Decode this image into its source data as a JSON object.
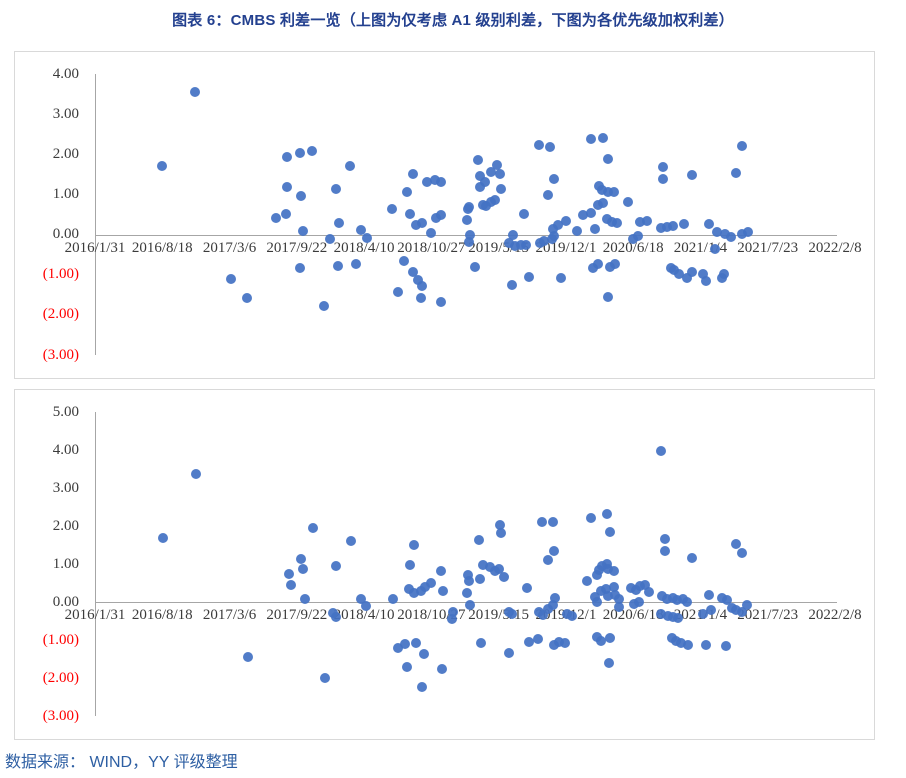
{
  "title": "图表 6：CMBS 利差一览（上图为仅考虑 A1 级别利差，下图为各优先级加权利差）",
  "source": "数据来源： WIND，YY 评级整理",
  "colors": {
    "title": "#23408f",
    "source": "#2e5fa3",
    "point": "#4472c4",
    "axis_line": "#a6a6a6",
    "tick_label": "#3b3b3b",
    "negative_tick_label": "#ff0000",
    "frame_border": "#d9d9d9"
  },
  "chart_data": [
    {
      "type": "scatter",
      "name": "仅考虑 A1 级别利差（上图）",
      "legend": "none",
      "grid": false,
      "xlabel": "",
      "ylabel": "",
      "x_tick_labels": [
        "2016/1/31",
        "2016/8/18",
        "2017/3/6",
        "2017/9/22",
        "2018/4/10",
        "2018/10/27",
        "2019/5/15",
        "2019/12/1",
        "2020/6/18",
        "2021/1/4",
        "2021/7/23",
        "2022/2/8"
      ],
      "x_range_years": [
        2016.085,
        2022.107
      ],
      "ylim": [
        -3,
        4
      ],
      "y_ticks": [
        "4.00",
        "3.00",
        "2.00",
        "1.00",
        "0.00",
        "(1.00)",
        "(2.00)",
        "(3.00)"
      ],
      "points": [
        [
          2016.9,
          3.55
        ],
        [
          2016.63,
          1.7
        ],
        [
          2017.65,
          1.94
        ],
        [
          2017.75,
          2.03
        ],
        [
          2017.85,
          2.07
        ],
        [
          2017.65,
          1.18
        ],
        [
          2017.76,
          0.96
        ],
        [
          2017.56,
          0.41
        ],
        [
          2017.64,
          0.52
        ],
        [
          2017.78,
          0.08
        ],
        [
          2017.19,
          -1.11
        ],
        [
          2017.32,
          -1.57
        ],
        [
          2017.95,
          -1.77
        ],
        [
          2017.75,
          -0.84
        ],
        [
          2018.16,
          1.7
        ],
        [
          2018.05,
          1.14
        ],
        [
          2018.07,
          0.3
        ],
        [
          2018.0,
          -0.1
        ],
        [
          2018.25,
          0.11
        ],
        [
          2018.3,
          -0.08
        ],
        [
          2018.06,
          -0.78
        ],
        [
          2018.21,
          -0.74
        ],
        [
          2018.5,
          0.63
        ],
        [
          2018.62,
          1.07
        ],
        [
          2018.67,
          1.51
        ],
        [
          2018.79,
          1.32
        ],
        [
          2018.85,
          1.35
        ],
        [
          2018.9,
          1.31
        ],
        [
          2018.65,
          0.52
        ],
        [
          2018.7,
          0.25
        ],
        [
          2018.75,
          0.3
        ],
        [
          2018.86,
          0.41
        ],
        [
          2018.9,
          0.48
        ],
        [
          2018.82,
          0.04
        ],
        [
          2018.6,
          -0.66
        ],
        [
          2018.67,
          -0.93
        ],
        [
          2018.71,
          -1.13
        ],
        [
          2018.75,
          -1.27
        ],
        [
          2018.55,
          -1.44
        ],
        [
          2018.74,
          -1.57
        ],
        [
          2018.9,
          -1.69
        ],
        [
          2019.2,
          1.85
        ],
        [
          2019.31,
          1.56
        ],
        [
          2019.36,
          1.74
        ],
        [
          2019.38,
          1.5
        ],
        [
          2019.39,
          1.14
        ],
        [
          2019.26,
          1.32
        ],
        [
          2019.22,
          1.47
        ],
        [
          2019.22,
          1.18
        ],
        [
          2019.34,
          0.86
        ],
        [
          2019.31,
          0.8
        ],
        [
          2019.12,
          0.63
        ],
        [
          2019.13,
          0.69
        ],
        [
          2019.24,
          0.73
        ],
        [
          2019.27,
          0.71
        ],
        [
          2019.11,
          0.36
        ],
        [
          2019.14,
          -0.02
        ],
        [
          2019.13,
          -0.18
        ],
        [
          2019.58,
          0.52
        ],
        [
          2019.18,
          -0.8
        ],
        [
          2019.48,
          -1.26
        ],
        [
          2019.62,
          -1.05
        ],
        [
          2019.88,
          -1.09
        ],
        [
          2019.7,
          2.22
        ],
        [
          2019.79,
          2.18
        ],
        [
          2019.82,
          1.39
        ],
        [
          2019.77,
          0.98
        ],
        [
          2019.49,
          -0.02
        ],
        [
          2019.45,
          -0.21
        ],
        [
          2019.5,
          -0.28
        ],
        [
          2019.55,
          -0.27
        ],
        [
          2019.59,
          -0.25
        ],
        [
          2019.71,
          -0.22
        ],
        [
          2019.74,
          -0.17
        ],
        [
          2019.8,
          -0.1
        ],
        [
          2019.82,
          -0.03
        ],
        [
          2019.92,
          0.34
        ],
        [
          2019.85,
          0.23
        ],
        [
          2019.81,
          0.13
        ],
        [
          2020.01,
          0.08
        ],
        [
          2020.12,
          2.38
        ],
        [
          2020.22,
          2.4
        ],
        [
          2020.26,
          1.89
        ],
        [
          2020.19,
          1.22
        ],
        [
          2020.21,
          1.1
        ],
        [
          2020.26,
          1.07
        ],
        [
          2020.31,
          1.06
        ],
        [
          2020.18,
          0.73
        ],
        [
          2020.22,
          0.79
        ],
        [
          2020.42,
          0.81
        ],
        [
          2020.06,
          0.49
        ],
        [
          2020.12,
          0.54
        ],
        [
          2020.15,
          0.15
        ],
        [
          2020.25,
          0.4
        ],
        [
          2020.29,
          0.31
        ],
        [
          2020.33,
          0.3
        ],
        [
          2020.52,
          0.31
        ],
        [
          2020.58,
          0.33
        ],
        [
          2020.46,
          -0.1
        ],
        [
          2020.5,
          -0.03
        ],
        [
          2020.14,
          -0.83
        ],
        [
          2020.18,
          -0.74
        ],
        [
          2020.28,
          -0.8
        ],
        [
          2020.32,
          -0.74
        ],
        [
          2020.26,
          -1.55
        ],
        [
          2020.69,
          0.17
        ],
        [
          2020.74,
          0.19
        ],
        [
          2020.79,
          0.21
        ],
        [
          2020.88,
          0.27
        ],
        [
          2020.71,
          1.68
        ],
        [
          2020.71,
          1.39
        ],
        [
          2020.94,
          1.49
        ],
        [
          2020.77,
          -0.83
        ],
        [
          2020.8,
          -0.89
        ],
        [
          2020.84,
          -0.99
        ],
        [
          2020.9,
          -1.07
        ],
        [
          2020.94,
          -0.93
        ],
        [
          2021.03,
          -0.97
        ],
        [
          2021.06,
          -1.16
        ],
        [
          2021.19,
          -1.09
        ],
        [
          2021.2,
          -0.99
        ],
        [
          2021.13,
          -0.37
        ],
        [
          2021.08,
          0.27
        ],
        [
          2021.15,
          0.07
        ],
        [
          2021.21,
          0.02
        ],
        [
          2021.26,
          -0.06
        ],
        [
          2021.35,
          0.02
        ],
        [
          2021.4,
          0.07
        ],
        [
          2021.3,
          1.54
        ],
        [
          2021.35,
          2.2
        ]
      ]
    },
    {
      "type": "scatter",
      "name": "各优先级加权利差（下图）",
      "legend": "none",
      "grid": false,
      "xlabel": "",
      "ylabel": "",
      "x_tick_labels": [
        "2016/1/31",
        "2016/8/18",
        "2017/3/6",
        "2017/9/22",
        "2018/4/10",
        "2018/10/27",
        "2019/5/15",
        "2019/12/1",
        "2020/6/18",
        "2021/1/4",
        "2021/7/23",
        "2022/2/8"
      ],
      "x_range_years": [
        2016.085,
        2022.107
      ],
      "ylim": [
        -3,
        5
      ],
      "y_ticks": [
        "5.00",
        "4.00",
        "3.00",
        "2.00",
        "1.00",
        "0.00",
        "(1.00)",
        "(2.00)",
        "(3.00)"
      ],
      "points": [
        [
          2016.91,
          3.37
        ],
        [
          2016.64,
          1.68
        ],
        [
          2017.86,
          1.94
        ],
        [
          2017.76,
          1.13
        ],
        [
          2017.66,
          0.75
        ],
        [
          2017.68,
          0.44
        ],
        [
          2017.78,
          0.86
        ],
        [
          2017.79,
          0.08
        ],
        [
          2017.33,
          -1.44
        ],
        [
          2017.96,
          -2.0
        ],
        [
          2018.17,
          1.6
        ],
        [
          2018.05,
          0.95
        ],
        [
          2018.02,
          -0.29
        ],
        [
          2018.05,
          -0.4
        ],
        [
          2018.25,
          0.08
        ],
        [
          2018.29,
          -0.11
        ],
        [
          2018.68,
          1.5
        ],
        [
          2018.65,
          0.97
        ],
        [
          2018.51,
          0.07
        ],
        [
          2018.64,
          0.35
        ],
        [
          2018.68,
          0.24
        ],
        [
          2018.74,
          0.28
        ],
        [
          2018.77,
          0.39
        ],
        [
          2018.82,
          0.51
        ],
        [
          2018.9,
          0.81
        ],
        [
          2018.92,
          0.3
        ],
        [
          2018.55,
          -1.2
        ],
        [
          2018.61,
          -1.11
        ],
        [
          2018.62,
          -1.7
        ],
        [
          2018.7,
          -1.08
        ],
        [
          2018.76,
          -1.37
        ],
        [
          2018.91,
          -1.76
        ],
        [
          2018.75,
          -2.23
        ],
        [
          2019.0,
          -0.25
        ],
        [
          2018.99,
          -0.46
        ],
        [
          2019.38,
          2.03
        ],
        [
          2019.39,
          1.81
        ],
        [
          2019.21,
          1.63
        ],
        [
          2019.24,
          0.97
        ],
        [
          2019.3,
          0.92
        ],
        [
          2019.34,
          0.81
        ],
        [
          2019.37,
          0.86
        ],
        [
          2019.41,
          0.66
        ],
        [
          2019.12,
          0.7
        ],
        [
          2019.13,
          0.54
        ],
        [
          2019.22,
          0.6
        ],
        [
          2019.11,
          0.24
        ],
        [
          2019.14,
          -0.07
        ],
        [
          2019.23,
          -1.08
        ],
        [
          2019.45,
          -1.35
        ],
        [
          2019.45,
          -0.25
        ],
        [
          2019.48,
          -0.31
        ],
        [
          2019.6,
          0.37
        ],
        [
          2019.62,
          -1.05
        ],
        [
          2019.69,
          -0.98
        ],
        [
          2019.72,
          2.1
        ],
        [
          2019.81,
          2.1
        ],
        [
          2019.82,
          1.34
        ],
        [
          2019.77,
          1.1
        ],
        [
          2019.7,
          -0.27
        ],
        [
          2019.73,
          -0.34
        ],
        [
          2019.77,
          -0.18
        ],
        [
          2019.81,
          -0.09
        ],
        [
          2019.83,
          0.1
        ],
        [
          2019.93,
          -0.31
        ],
        [
          2019.97,
          -0.38
        ],
        [
          2019.82,
          -1.14
        ],
        [
          2019.86,
          -1.05
        ],
        [
          2019.91,
          -1.08
        ],
        [
          2020.12,
          2.21
        ],
        [
          2020.25,
          2.31
        ],
        [
          2020.28,
          1.84
        ],
        [
          2020.09,
          0.54
        ],
        [
          2020.17,
          0.7
        ],
        [
          2020.19,
          0.84
        ],
        [
          2020.21,
          0.95
        ],
        [
          2020.25,
          1.01
        ],
        [
          2020.26,
          0.88
        ],
        [
          2020.31,
          0.81
        ],
        [
          2020.15,
          0.13
        ],
        [
          2020.17,
          0.01
        ],
        [
          2020.2,
          0.28
        ],
        [
          2020.24,
          0.33
        ],
        [
          2020.26,
          0.17
        ],
        [
          2020.31,
          0.39
        ],
        [
          2020.32,
          0.19
        ],
        [
          2020.35,
          0.07
        ],
        [
          2020.35,
          -0.14
        ],
        [
          2020.45,
          0.37
        ],
        [
          2020.49,
          0.31
        ],
        [
          2020.52,
          0.42
        ],
        [
          2020.56,
          0.46
        ],
        [
          2020.59,
          0.26
        ],
        [
          2020.47,
          -0.05
        ],
        [
          2020.51,
          0.01
        ],
        [
          2020.17,
          -0.91
        ],
        [
          2020.2,
          -1.02
        ],
        [
          2020.28,
          -0.96
        ],
        [
          2020.27,
          -1.61
        ],
        [
          2020.69,
          3.97
        ],
        [
          2020.72,
          1.66
        ],
        [
          2020.72,
          1.34
        ],
        [
          2020.94,
          1.16
        ],
        [
          2020.7,
          0.15
        ],
        [
          2020.74,
          0.07
        ],
        [
          2020.79,
          0.1
        ],
        [
          2020.82,
          0.04
        ],
        [
          2020.87,
          0.07
        ],
        [
          2020.9,
          0.01
        ],
        [
          2020.69,
          -0.31
        ],
        [
          2020.75,
          -0.36
        ],
        [
          2020.79,
          -0.4
        ],
        [
          2020.83,
          -0.42
        ],
        [
          2020.78,
          -0.96
        ],
        [
          2020.81,
          -1.02
        ],
        [
          2020.85,
          -1.08
        ],
        [
          2020.91,
          -1.14
        ],
        [
          2021.08,
          0.19
        ],
        [
          2021.1,
          -0.2
        ],
        [
          2021.19,
          0.1
        ],
        [
          2021.23,
          0.04
        ],
        [
          2021.27,
          -0.16
        ],
        [
          2021.3,
          -0.2
        ],
        [
          2021.35,
          -0.25
        ],
        [
          2021.39,
          -0.07
        ],
        [
          2021.03,
          -0.31
        ],
        [
          2021.06,
          -1.14
        ],
        [
          2021.22,
          -1.17
        ],
        [
          2021.3,
          1.52
        ],
        [
          2021.35,
          1.3
        ]
      ]
    }
  ]
}
